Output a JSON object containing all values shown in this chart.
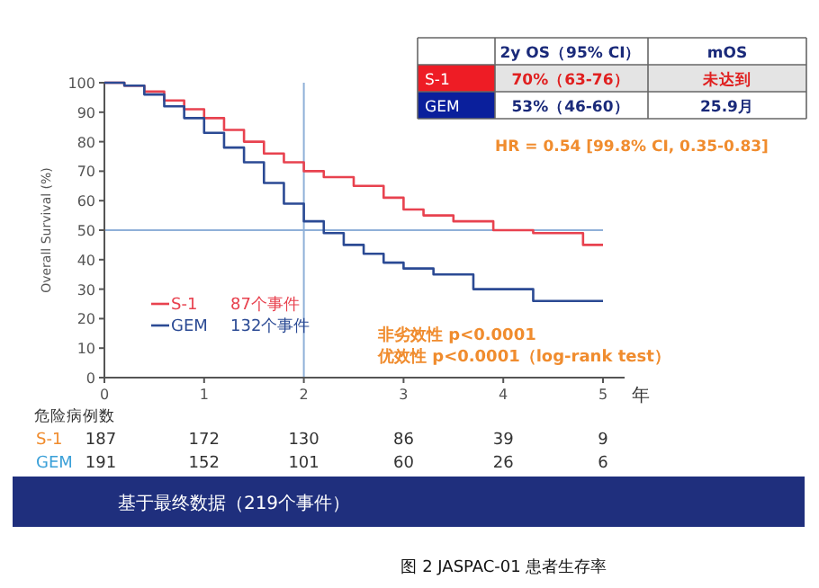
{
  "chart_data": {
    "type": "step",
    "ylabel": "Overall Survival (%)",
    "xlabel": "年",
    "xlim": [
      0,
      5
    ],
    "xticks": [
      0,
      1,
      2,
      3,
      4,
      5
    ],
    "ylim": [
      0,
      100
    ],
    "yticks": [
      0,
      10,
      20,
      30,
      40,
      50,
      60,
      70,
      80,
      90,
      100
    ],
    "series": [
      {
        "name": "S-1",
        "color": "#e8424f",
        "x": [
          0,
          0.2,
          0.4,
          0.6,
          0.8,
          1,
          1.2,
          1.4,
          1.6,
          1.8,
          2,
          2.2,
          2.5,
          2.8,
          3,
          3.2,
          3.5,
          3.9,
          4.3,
          4.8,
          5
        ],
        "values": [
          100,
          99,
          97,
          94,
          91,
          88,
          84,
          80,
          76,
          73,
          70,
          68,
          65,
          61,
          57,
          55,
          53,
          50,
          49,
          45,
          45
        ]
      },
      {
        "name": "GEM",
        "color": "#2b4a94",
        "x": [
          0,
          0.2,
          0.4,
          0.6,
          0.8,
          1,
          1.2,
          1.4,
          1.6,
          1.8,
          2,
          2.2,
          2.4,
          2.6,
          2.8,
          3,
          3.3,
          3.7,
          4.3,
          5
        ],
        "values": [
          100,
          99,
          96,
          92,
          88,
          83,
          78,
          73,
          66,
          59,
          53,
          49,
          45,
          42,
          39,
          37,
          35,
          30,
          26,
          26
        ]
      }
    ],
    "ref_lines": [
      {
        "axis": "y",
        "value": 50,
        "color": "#8fb0d8"
      },
      {
        "axis": "x",
        "value": 2,
        "color": "#8fb0d8"
      }
    ],
    "legend": "bottom left",
    "annotations": [
      "87个事件",
      "132个事件",
      "非劣效性 p<0.0001",
      "优效性    p<0.0001（log-rank test）",
      "危险病例数",
      "S-1",
      "GEM",
      "187",
      "172",
      "130",
      "86",
      "39",
      "9",
      "191",
      "152",
      "101",
      "60",
      "26",
      "6",
      "2y OS（95% CI）",
      "mOS",
      "S-1",
      "70%（63-76）",
      "未达到",
      "GEM",
      "53%（46-60）",
      "25.9月",
      "HR = 0.54  [99.8% CI, 0.35-0.83]",
      "基于最终数据（219个事件）",
      "图 2  JASPAC-01 患者生存率"
    ]
  }
}
